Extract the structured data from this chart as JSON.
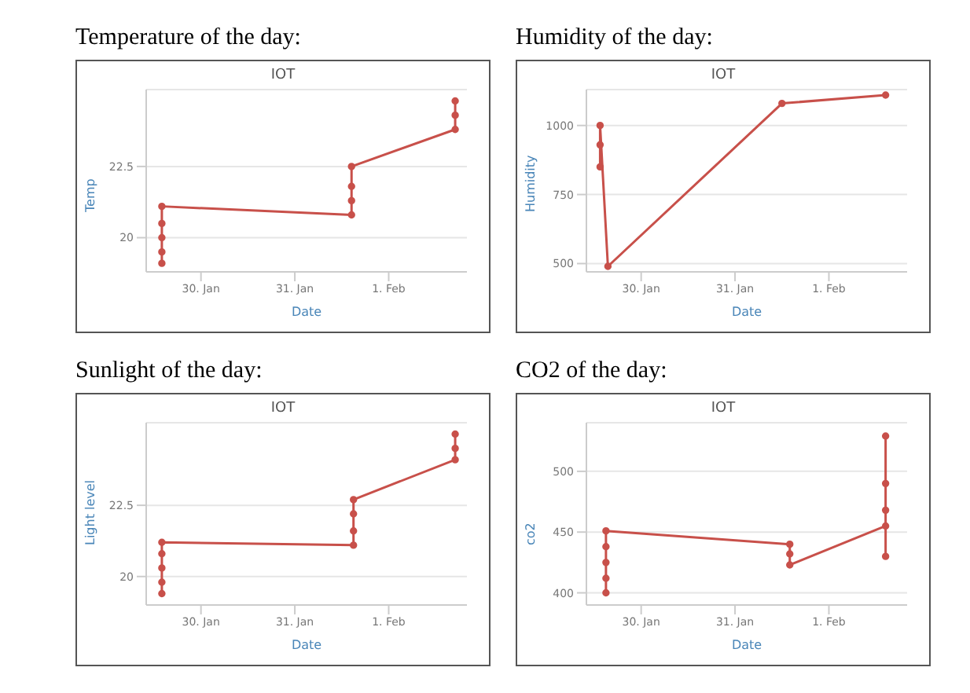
{
  "chart_data": [
    {
      "type": "line",
      "title": "Temperature of the day:",
      "subtitle": "IOT",
      "xlabel": "Date",
      "ylabel": "Temp",
      "x": [
        "--01-29T14:00",
        "--01-29T14:00",
        "--01-29T14:00",
        "--01-29T14:00",
        "--01-29T14:00",
        "--01-31T14:30",
        "--01-31T14:30",
        "--01-31T14:30",
        "--01-31T14:30",
        "--02-01T17:00",
        "--02-01T17:00",
        "--02-01T17:00"
      ],
      "series": [
        {
          "color": "#c8504a",
          "values": [
            19.1,
            19.5,
            20.0,
            20.5,
            21.1,
            20.8,
            21.3,
            21.8,
            22.5,
            23.8,
            24.3,
            24.8
          ]
        }
      ],
      "xlim": [
        "--01-29T10:00",
        "--02-01T20:00"
      ],
      "xticks": [
        {
          "value": "--01-30",
          "label": "30. Jan"
        },
        {
          "value": "--01-31",
          "label": "31. Jan"
        },
        {
          "value": "--02-01",
          "label": "1. Feb"
        }
      ],
      "ylim": [
        18.8,
        25.2
      ],
      "yticks": [
        20,
        22.5
      ],
      "grid": "y",
      "marker": "circle",
      "line_style": "solid"
    },
    {
      "type": "line",
      "title": "Humidity of the day:",
      "subtitle": "IOT",
      "xlabel": "Date",
      "ylabel": "Humidity",
      "x": [
        "--01-29T13:30",
        "--01-29T13:30",
        "--01-29T13:30",
        "--01-29T15:30",
        "--01-31T12:00",
        "--02-01T14:30"
      ],
      "series": [
        {
          "color": "#c8504a",
          "values": [
            850,
            930,
            1000,
            490,
            1080,
            1110
          ]
        }
      ],
      "xlim": [
        "--01-29T10:00",
        "--02-01T20:00"
      ],
      "xticks": [
        {
          "value": "--01-30",
          "label": "30. Jan"
        },
        {
          "value": "--01-31",
          "label": "31. Jan"
        },
        {
          "value": "--02-01",
          "label": "1. Feb"
        }
      ],
      "ylim": [
        470,
        1130
      ],
      "yticks": [
        500,
        750,
        1000
      ],
      "grid": "y",
      "marker": "circle",
      "line_style": "solid"
    },
    {
      "type": "line",
      "title": "Sunlight of the day:",
      "subtitle": "IOT",
      "xlabel": "Date",
      "ylabel": "Light level",
      "x": [
        "--01-29T14:00",
        "--01-29T14:00",
        "--01-29T14:00",
        "--01-29T14:00",
        "--01-29T14:00",
        "--01-31T15:00",
        "--01-31T15:00",
        "--01-31T15:00",
        "--01-31T15:00",
        "--02-01T17:00",
        "--02-01T17:00",
        "--02-01T17:00"
      ],
      "series": [
        {
          "color": "#c8504a",
          "values": [
            19.4,
            19.8,
            20.3,
            20.8,
            21.2,
            21.1,
            21.6,
            22.2,
            22.7,
            24.1,
            24.5,
            25.0
          ]
        }
      ],
      "xlim": [
        "--01-29T10:00",
        "--02-01T20:00"
      ],
      "xticks": [
        {
          "value": "--01-30",
          "label": "30. Jan"
        },
        {
          "value": "--01-31",
          "label": "31. Jan"
        },
        {
          "value": "--02-01",
          "label": "1. Feb"
        }
      ],
      "ylim": [
        19,
        25.4
      ],
      "yticks": [
        20,
        22.5
      ],
      "grid": "y",
      "marker": "circle",
      "line_style": "solid"
    },
    {
      "type": "line",
      "title": "CO2 of the day:",
      "subtitle": "IOT",
      "xlabel": "Date",
      "ylabel": "co2",
      "x": [
        "--01-29T15:00",
        "--01-29T15:00",
        "--01-29T15:00",
        "--01-29T15:00",
        "--01-29T15:00",
        "--01-31T14:00",
        "--01-31T14:00",
        "--01-31T14:00",
        "--02-01T14:30",
        "--02-01T14:30",
        "--02-01T14:30",
        "--02-01T14:30",
        "--02-01T14:30"
      ],
      "series": [
        {
          "color": "#c8504a",
          "values": [
            400,
            412,
            425,
            438,
            451,
            440,
            432,
            423,
            455,
            430,
            468,
            490,
            529
          ]
        }
      ],
      "xlim": [
        "--01-29T10:00",
        "--02-01T20:00"
      ],
      "xticks": [
        {
          "value": "--01-30",
          "label": "30. Jan"
        },
        {
          "value": "--01-31",
          "label": "31. Jan"
        },
        {
          "value": "--02-01",
          "label": "1. Feb"
        }
      ],
      "ylim": [
        390,
        540
      ],
      "yticks": [
        400,
        450,
        500
      ],
      "grid": "y",
      "marker": "circle",
      "line_style": "solid"
    }
  ]
}
